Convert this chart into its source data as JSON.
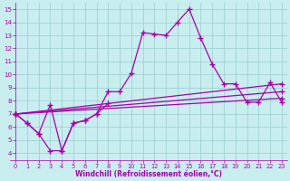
{
  "bg_color": "#c8eef0",
  "line_color": "#aa00aa",
  "grid_color": "#99cccc",
  "xlabel": "Windchill (Refroidissement éolien,°C)",
  "xlabel_color": "#aa00aa",
  "tick_color": "#aa00aa",
  "ylim": [
    3.5,
    15.5
  ],
  "xlim": [
    -0.5,
    23.5
  ],
  "yticks": [
    4,
    5,
    6,
    7,
    8,
    9,
    10,
    11,
    12,
    13,
    14,
    15
  ],
  "xticks": [
    0,
    1,
    2,
    3,
    4,
    5,
    6,
    7,
    8,
    9,
    10,
    11,
    12,
    13,
    14,
    15,
    16,
    17,
    18,
    19,
    20,
    21,
    22,
    23
  ],
  "main_x": [
    0,
    1,
    2,
    3,
    4,
    5,
    6,
    7,
    8,
    9,
    10,
    11,
    12,
    13,
    14,
    15,
    16,
    17,
    18,
    19,
    20,
    21,
    22,
    23
  ],
  "main_y": [
    7.0,
    6.3,
    5.5,
    7.7,
    4.2,
    6.3,
    6.5,
    7.0,
    8.7,
    8.7,
    10.1,
    13.2,
    13.1,
    13.0,
    14.0,
    15.0,
    12.8,
    10.8,
    9.3,
    9.3,
    7.9,
    7.9,
    9.4,
    7.9
  ],
  "dip_x": [
    0,
    1,
    2,
    3,
    4,
    5,
    6,
    7,
    8
  ],
  "dip_y": [
    7.0,
    6.3,
    5.5,
    4.2,
    4.2,
    6.3,
    6.5,
    7.0,
    7.8
  ],
  "trend1_x": [
    0,
    23
  ],
  "trend1_y": [
    7.0,
    9.3
  ],
  "trend2_x": [
    0,
    23
  ],
  "trend2_y": [
    7.0,
    8.7
  ],
  "trend3_x": [
    0,
    23
  ],
  "trend3_y": [
    7.0,
    8.2
  ]
}
